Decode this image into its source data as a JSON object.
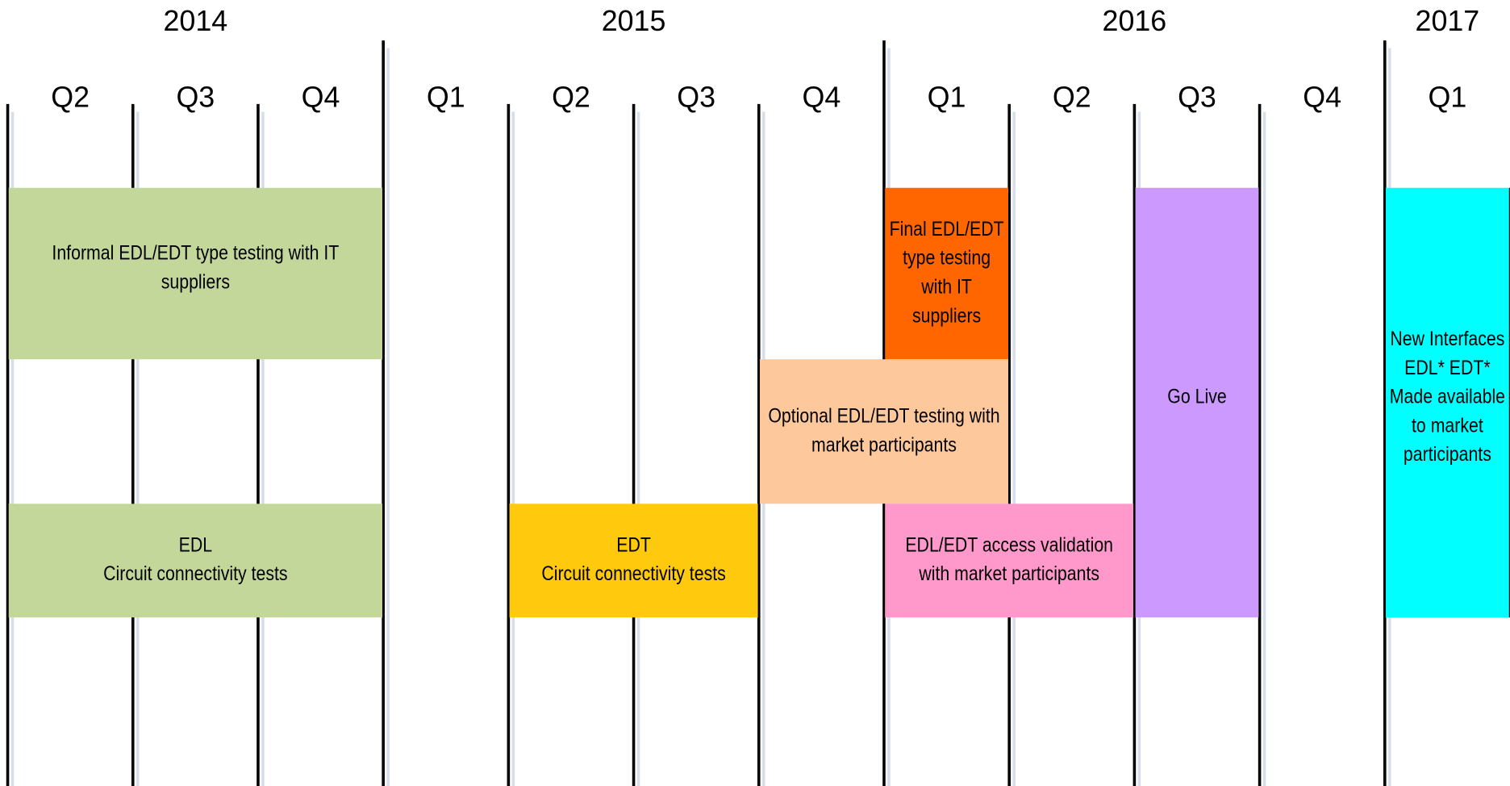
{
  "years": [
    "2014",
    "2015",
    "2016",
    "2017"
  ],
  "quarters": [
    "Q2",
    "Q3",
    "Q4",
    "Q1",
    "Q2",
    "Q3",
    "Q4",
    "Q1",
    "Q2",
    "Q3",
    "Q4",
    "Q1"
  ],
  "tasks": [
    {
      "lines": [
        "Informal EDL/EDT type testing with IT",
        "suppliers"
      ],
      "color": "#c4d79b"
    },
    {
      "lines": [
        "EDL",
        "Circuit connectivity tests"
      ],
      "color": "#c4d79b"
    },
    {
      "lines": [
        "EDT",
        "Circuit connectivity tests"
      ],
      "color": "#ffc90e"
    },
    {
      "lines": [
        "Final EDL/EDT",
        "type testing",
        "with IT",
        "suppliers"
      ],
      "color": "#ff6600"
    },
    {
      "lines": [
        "Optional EDL/EDT testing with",
        "market participants"
      ],
      "color": "#fdc99c"
    },
    {
      "lines": [
        "EDL/EDT access validation",
        "with market participants"
      ],
      "color": "#ff99cc"
    },
    {
      "lines": [
        "Go Live"
      ],
      "color": "#cc99ff"
    },
    {
      "lines": [
        "New Interfaces",
        "EDL* EDT*",
        "Made available",
        "to market",
        "participants"
      ],
      "color": "#00ffff"
    }
  ]
}
